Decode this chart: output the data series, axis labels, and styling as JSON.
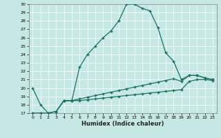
{
  "xlabel": "Humidex (Indice chaleur)",
  "bg_color": "#c5e8e5",
  "line_color": "#1a7060",
  "grid_color": "#ffffff",
  "ylim": [
    17,
    30
  ],
  "xlim": [
    -0.5,
    23.5
  ],
  "yticks": [
    17,
    18,
    19,
    20,
    21,
    22,
    23,
    24,
    25,
    26,
    27,
    28,
    29,
    30
  ],
  "xticks": [
    0,
    1,
    2,
    3,
    4,
    5,
    6,
    7,
    8,
    9,
    10,
    11,
    12,
    13,
    14,
    15,
    16,
    17,
    18,
    19,
    20,
    21,
    22,
    23
  ],
  "line1_x": [
    0,
    1,
    2,
    3,
    4,
    5,
    6,
    7,
    8,
    9,
    10,
    11,
    12,
    13,
    14,
    15,
    16,
    17,
    18,
    19,
    20,
    21,
    22,
    23
  ],
  "line1_y": [
    20.0,
    18.0,
    17.0,
    17.2,
    18.5,
    18.5,
    22.5,
    24.0,
    25.0,
    26.0,
    26.8,
    28.0,
    30.0,
    30.0,
    29.5,
    29.2,
    27.2,
    24.2,
    23.2,
    21.0,
    21.5,
    21.5,
    21.2,
    21.0
  ],
  "line2_x": [
    0,
    1,
    2,
    3,
    4,
    5,
    6,
    7,
    8,
    9,
    10,
    11,
    12,
    13,
    14,
    15,
    16,
    17,
    18,
    19,
    20,
    21,
    22,
    23
  ],
  "line2_y": [
    17.0,
    17.0,
    17.0,
    17.2,
    18.5,
    18.5,
    18.7,
    18.9,
    19.1,
    19.3,
    19.5,
    19.7,
    19.9,
    20.1,
    20.3,
    20.5,
    20.7,
    20.9,
    21.1,
    20.8,
    21.5,
    21.5,
    21.2,
    21.0
  ],
  "line3_x": [
    0,
    1,
    2,
    3,
    4,
    5,
    6,
    7,
    8,
    9,
    10,
    11,
    12,
    13,
    14,
    15,
    16,
    17,
    18,
    19,
    20,
    21,
    22,
    23
  ],
  "line3_y": [
    17.0,
    17.0,
    17.0,
    17.2,
    18.5,
    18.5,
    18.5,
    18.6,
    18.7,
    18.8,
    18.9,
    19.0,
    19.1,
    19.2,
    19.3,
    19.4,
    19.5,
    19.6,
    19.7,
    19.8,
    20.8,
    21.0,
    21.0,
    20.9
  ]
}
